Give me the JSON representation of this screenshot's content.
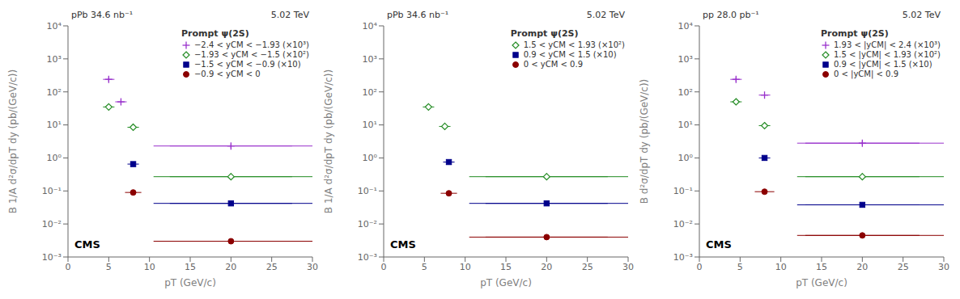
{
  "chart_data": [
    {
      "type": "scatter",
      "title": "pPb 34.6 nb⁻¹",
      "subtitle": "5.02 TeV",
      "x_label": "pT (GeV/c)",
      "y_label": "B 1/A d²σ/dpT dy (pb/(GeV/c))",
      "annotation": "CMS",
      "legend_title": "Prompt ψ(2S)",
      "legend": "upper right",
      "log": "y",
      "grid": false,
      "xlim": [
        0,
        30
      ],
      "xticks": [
        0,
        5,
        10,
        15,
        20,
        25,
        30
      ],
      "ylim": [
        0.001,
        10000
      ],
      "yticks": [
        {
          "value": 0.001,
          "label": "10⁻³"
        },
        {
          "value": 0.01,
          "label": "10⁻²"
        },
        {
          "value": 0.1,
          "label": "10⁻¹"
        },
        {
          "value": 1,
          "label": "10⁰"
        },
        {
          "value": 10,
          "label": "10¹"
        },
        {
          "value": 100,
          "label": "10²"
        },
        {
          "value": 1000,
          "label": "10³"
        },
        {
          "value": 10000,
          "label": "10⁴"
        }
      ],
      "series": [
        {
          "name": "−2.4 < yCM < −1.93 (×10³)",
          "color": "#9932CC",
          "marker": "plus",
          "points": [
            {
              "x": 5.0,
              "y": 240,
              "xerr": 0.7,
              "yerr_lo": 35,
              "yerr_hi": 35
            },
            {
              "x": 6.5,
              "y": 50,
              "xerr": 0.7,
              "yerr_lo": 8,
              "yerr_hi": 8
            },
            {
              "x": 20.0,
              "y": 2.3,
              "xerr": 7.5,
              "yerr_lo": 0.3,
              "yerr_hi": 0.3
            }
          ],
          "band": {
            "y": 2.3,
            "xmin": 10.5,
            "xmax": 30
          }
        },
        {
          "name": "−1.93 < yCM < −1.5 (×10²)",
          "color": "#228B22",
          "marker": "open_diamond",
          "points": [
            {
              "x": 5.0,
              "y": 35,
              "xerr": 0.7,
              "yerr_lo": 5,
              "yerr_hi": 5
            },
            {
              "x": 8.0,
              "y": 8.5,
              "xerr": 0.7,
              "yerr_lo": 1.2,
              "yerr_hi": 1.2
            },
            {
              "x": 20.0,
              "y": 0.27,
              "xerr": 7.5,
              "yerr_lo": 0.04,
              "yerr_hi": 0.04
            }
          ],
          "band": {
            "y": 0.27,
            "xmin": 10.5,
            "xmax": 30
          }
        },
        {
          "name": "−1.5 < yCM < −0.9 (×10)",
          "color": "#00008B",
          "marker": "square",
          "points": [
            {
              "x": 8.0,
              "y": 0.65,
              "xerr": 0.7,
              "yerr_lo": 0.1,
              "yerr_hi": 0.1
            },
            {
              "x": 20.0,
              "y": 0.042,
              "xerr": 7.5,
              "yerr_lo": 0.006,
              "yerr_hi": 0.006
            }
          ],
          "band": {
            "y": 0.042,
            "xmin": 10.5,
            "xmax": 30
          }
        },
        {
          "name": "−0.9 < yCM < 0",
          "color": "#8B0000",
          "marker": "circle",
          "points": [
            {
              "x": 8.0,
              "y": 0.09,
              "xerr": 1.0,
              "yerr_lo": 0.014,
              "yerr_hi": 0.014
            },
            {
              "x": 20.0,
              "y": 0.003,
              "xerr": 7.5,
              "yerr_lo": 0.0005,
              "yerr_hi": 0.0005
            }
          ],
          "band": {
            "y": 0.003,
            "xmin": 10.5,
            "xmax": 30
          }
        }
      ]
    },
    {
      "type": "scatter",
      "title": "pPb 34.6 nb⁻¹",
      "subtitle": "5.02 TeV",
      "x_label": "pT (GeV/c)",
      "y_label": "B 1/A d²σ/dpT dy (pb/(GeV/c))",
      "annotation": "CMS",
      "legend_title": "Prompt ψ(2S)",
      "legend": "upper right",
      "log": "y",
      "grid": false,
      "xlim": [
        0,
        30
      ],
      "xticks": [
        0,
        5,
        10,
        15,
        20,
        25,
        30
      ],
      "ylim": [
        0.001,
        10000
      ],
      "yticks": [
        {
          "value": 0.001,
          "label": "10⁻³"
        },
        {
          "value": 0.01,
          "label": "10⁻²"
        },
        {
          "value": 0.1,
          "label": "10⁻¹"
        },
        {
          "value": 1,
          "label": "10⁰"
        },
        {
          "value": 10,
          "label": "10¹"
        },
        {
          "value": 100,
          "label": "10²"
        },
        {
          "value": 1000,
          "label": "10³"
        },
        {
          "value": 10000,
          "label": "10⁴"
        }
      ],
      "series": [
        {
          "name": "1.5 < yCM < 1.93 (×10²)",
          "color": "#228B22",
          "marker": "open_diamond",
          "points": [
            {
              "x": 5.5,
              "y": 35,
              "xerr": 0.7,
              "yerr_lo": 5,
              "yerr_hi": 5
            },
            {
              "x": 7.5,
              "y": 9.0,
              "xerr": 0.7,
              "yerr_lo": 1.3,
              "yerr_hi": 1.3
            },
            {
              "x": 20.0,
              "y": 0.27,
              "xerr": 7.5,
              "yerr_lo": 0.04,
              "yerr_hi": 0.04
            }
          ],
          "band": {
            "y": 0.27,
            "xmin": 10.5,
            "xmax": 30
          }
        },
        {
          "name": "0.9 < yCM < 1.5 (×10)",
          "color": "#00008B",
          "marker": "square",
          "points": [
            {
              "x": 8.0,
              "y": 0.75,
              "xerr": 0.7,
              "yerr_lo": 0.11,
              "yerr_hi": 0.11
            },
            {
              "x": 20.0,
              "y": 0.042,
              "xerr": 7.5,
              "yerr_lo": 0.006,
              "yerr_hi": 0.006
            }
          ],
          "band": {
            "y": 0.042,
            "xmin": 10.5,
            "xmax": 30
          }
        },
        {
          "name": "0 < yCM < 0.9",
          "color": "#8B0000",
          "marker": "circle",
          "points": [
            {
              "x": 8.0,
              "y": 0.085,
              "xerr": 1.0,
              "yerr_lo": 0.013,
              "yerr_hi": 0.013
            },
            {
              "x": 20.0,
              "y": 0.004,
              "xerr": 7.5,
              "yerr_lo": 0.0006,
              "yerr_hi": 0.0006
            }
          ],
          "band": {
            "y": 0.004,
            "xmin": 10.5,
            "xmax": 30
          }
        }
      ]
    },
    {
      "type": "scatter",
      "title": "pp 28.0 pb⁻¹",
      "subtitle": "5.02 TeV",
      "x_label": "pT (GeV/c)",
      "y_label": "B d²σ/dpT dy (pb/(GeV/c))",
      "annotation": "CMS",
      "legend_title": "Prompt ψ(2S)",
      "legend": "upper right",
      "log": "y",
      "grid": false,
      "xlim": [
        0,
        30
      ],
      "xticks": [
        0,
        5,
        10,
        15,
        20,
        25,
        30
      ],
      "ylim": [
        0.001,
        10000
      ],
      "yticks": [
        {
          "value": 0.001,
          "label": "10⁻³"
        },
        {
          "value": 0.01,
          "label": "10⁻²"
        },
        {
          "value": 0.1,
          "label": "10⁻¹"
        },
        {
          "value": 1,
          "label": "10⁰"
        },
        {
          "value": 10,
          "label": "10¹"
        },
        {
          "value": 100,
          "label": "10²"
        },
        {
          "value": 1000,
          "label": "10³"
        },
        {
          "value": 10000,
          "label": "10⁴"
        }
      ],
      "series": [
        {
          "name": "1.93 < |yCM| < 2.4 (×10³)",
          "color": "#9932CC",
          "marker": "plus",
          "points": [
            {
              "x": 4.5,
              "y": 240,
              "xerr": 0.7,
              "yerr_lo": 35,
              "yerr_hi": 35
            },
            {
              "x": 8.0,
              "y": 80,
              "xerr": 0.7,
              "yerr_lo": 12,
              "yerr_hi": 12
            },
            {
              "x": 20.0,
              "y": 2.8,
              "xerr": 7.0,
              "yerr_lo": 0.4,
              "yerr_hi": 0.4
            }
          ],
          "band": {
            "y": 2.8,
            "xmin": 12,
            "xmax": 30
          }
        },
        {
          "name": "1.5 < |yCM| < 1.93 (×10²)",
          "color": "#228B22",
          "marker": "open_diamond",
          "points": [
            {
              "x": 4.5,
              "y": 50,
              "xerr": 0.7,
              "yerr_lo": 8,
              "yerr_hi": 8
            },
            {
              "x": 8.0,
              "y": 9.5,
              "xerr": 0.7,
              "yerr_lo": 1.4,
              "yerr_hi": 1.4
            },
            {
              "x": 20.0,
              "y": 0.27,
              "xerr": 7.0,
              "yerr_lo": 0.04,
              "yerr_hi": 0.04
            }
          ],
          "band": {
            "y": 0.27,
            "xmin": 12,
            "xmax": 30
          }
        },
        {
          "name": "0.9 < |yCM| < 1.5 (×10)",
          "color": "#00008B",
          "marker": "square",
          "points": [
            {
              "x": 8.0,
              "y": 1.0,
              "xerr": 0.7,
              "yerr_lo": 0.15,
              "yerr_hi": 0.15
            },
            {
              "x": 20.0,
              "y": 0.038,
              "xerr": 7.0,
              "yerr_lo": 0.006,
              "yerr_hi": 0.006
            }
          ],
          "band": {
            "y": 0.038,
            "xmin": 12,
            "xmax": 30
          }
        },
        {
          "name": "0 < |yCM| < 0.9",
          "color": "#8B0000",
          "marker": "circle",
          "points": [
            {
              "x": 8.0,
              "y": 0.095,
              "xerr": 1.2,
              "yerr_lo": 0.015,
              "yerr_hi": 0.015
            },
            {
              "x": 20.0,
              "y": 0.0045,
              "xerr": 7.0,
              "yerr_lo": 0.0007,
              "yerr_hi": 0.0007
            }
          ],
          "band": {
            "y": 0.0045,
            "xmin": 12,
            "xmax": 30
          }
        }
      ]
    }
  ]
}
